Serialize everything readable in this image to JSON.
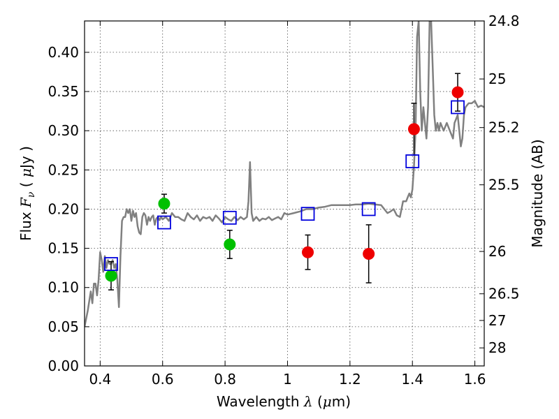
{
  "chart_data": {
    "type": "scatter",
    "xlabel": "Wavelength  λ (μm)",
    "ylabel": "Flux  F_ν  ( μJy )",
    "ylabel_right": "Magnitude (AB)",
    "xlim": [
      0.35,
      1.63
    ],
    "ylim": [
      0.0,
      0.44
    ],
    "x_ticks": [
      0.4,
      0.6,
      0.8,
      1.0,
      1.2,
      1.4,
      1.6
    ],
    "x_tick_labels": [
      "0.4",
      "0.6",
      "0.8",
      "1",
      "1.2",
      "1.4",
      "1.6"
    ],
    "y_ticks": [
      0.0,
      0.05,
      0.1,
      0.15,
      0.2,
      0.25,
      0.3,
      0.35,
      0.4
    ],
    "y_tick_labels": [
      "0.00",
      "0.05",
      "0.10",
      "0.15",
      "0.20",
      "0.25",
      "0.30",
      "0.35",
      "0.40"
    ],
    "right_ticks": [
      {
        "label": "24.8",
        "flux": 0.44
      },
      {
        "label": "25",
        "flux": 0.366
      },
      {
        "label": "25.2",
        "flux": 0.304
      },
      {
        "label": "25.5",
        "flux": 0.231
      },
      {
        "label": "26",
        "flux": 0.146
      },
      {
        "label": "26.5",
        "flux": 0.092
      },
      {
        "label": "27",
        "flux": 0.058
      },
      {
        "label": "28",
        "flux": 0.023
      }
    ],
    "grid": true,
    "colors": {
      "model": "#808080",
      "green": "#00c000",
      "red": "#ee0000",
      "square": "#0000dd",
      "errorbar": "#000000"
    },
    "series": [
      {
        "name": "green points",
        "marker": "circle",
        "color": "green",
        "points": [
          {
            "x": 0.435,
            "y": 0.115,
            "err": 0.018
          },
          {
            "x": 0.605,
            "y": 0.207,
            "err": 0.012
          },
          {
            "x": 0.815,
            "y": 0.155,
            "err": 0.018
          }
        ]
      },
      {
        "name": "red points",
        "marker": "circle",
        "color": "red",
        "points": [
          {
            "x": 1.065,
            "y": 0.145,
            "err": 0.022
          },
          {
            "x": 1.26,
            "y": 0.143,
            "err": 0.037
          },
          {
            "x": 1.405,
            "y": 0.302,
            "err": 0.033
          },
          {
            "x": 1.545,
            "y": 0.349,
            "err": 0.024
          }
        ]
      },
      {
        "name": "model squares",
        "marker": "square",
        "color": "square",
        "points": [
          {
            "x": 0.435,
            "y": 0.13
          },
          {
            "x": 0.605,
            "y": 0.183
          },
          {
            "x": 0.815,
            "y": 0.189
          },
          {
            "x": 1.065,
            "y": 0.194
          },
          {
            "x": 1.26,
            "y": 0.2
          },
          {
            "x": 1.4,
            "y": 0.261
          },
          {
            "x": 1.545,
            "y": 0.33
          }
        ]
      }
    ],
    "model_spectrum": [
      [
        0.35,
        0.05
      ],
      [
        0.36,
        0.07
      ],
      [
        0.37,
        0.095
      ],
      [
        0.375,
        0.08
      ],
      [
        0.38,
        0.105
      ],
      [
        0.385,
        0.105
      ],
      [
        0.39,
        0.09
      ],
      [
        0.395,
        0.11
      ],
      [
        0.4,
        0.145
      ],
      [
        0.405,
        0.135
      ],
      [
        0.41,
        0.12
      ],
      [
        0.415,
        0.14
      ],
      [
        0.42,
        0.125
      ],
      [
        0.425,
        0.135
      ],
      [
        0.43,
        0.13
      ],
      [
        0.435,
        0.13
      ],
      [
        0.44,
        0.135
      ],
      [
        0.445,
        0.125
      ],
      [
        0.45,
        0.13
      ],
      [
        0.455,
        0.11
      ],
      [
        0.46,
        0.075
      ],
      [
        0.465,
        0.14
      ],
      [
        0.47,
        0.185
      ],
      [
        0.475,
        0.19
      ],
      [
        0.48,
        0.19
      ],
      [
        0.485,
        0.2
      ],
      [
        0.49,
        0.195
      ],
      [
        0.495,
        0.2
      ],
      [
        0.5,
        0.185
      ],
      [
        0.505,
        0.198
      ],
      [
        0.51,
        0.19
      ],
      [
        0.515,
        0.195
      ],
      [
        0.52,
        0.178
      ],
      [
        0.525,
        0.17
      ],
      [
        0.53,
        0.168
      ],
      [
        0.535,
        0.19
      ],
      [
        0.54,
        0.195
      ],
      [
        0.545,
        0.192
      ],
      [
        0.55,
        0.18
      ],
      [
        0.555,
        0.19
      ],
      [
        0.56,
        0.185
      ],
      [
        0.565,
        0.19
      ],
      [
        0.57,
        0.192
      ],
      [
        0.575,
        0.18
      ],
      [
        0.58,
        0.188
      ],
      [
        0.585,
        0.19
      ],
      [
        0.59,
        0.186
      ],
      [
        0.595,
        0.19
      ],
      [
        0.6,
        0.187
      ],
      [
        0.61,
        0.19
      ],
      [
        0.62,
        0.185
      ],
      [
        0.63,
        0.195
      ],
      [
        0.64,
        0.19
      ],
      [
        0.65,
        0.19
      ],
      [
        0.66,
        0.187
      ],
      [
        0.67,
        0.185
      ],
      [
        0.68,
        0.195
      ],
      [
        0.69,
        0.19
      ],
      [
        0.7,
        0.187
      ],
      [
        0.71,
        0.192
      ],
      [
        0.72,
        0.185
      ],
      [
        0.73,
        0.19
      ],
      [
        0.74,
        0.188
      ],
      [
        0.75,
        0.19
      ],
      [
        0.76,
        0.185
      ],
      [
        0.77,
        0.192
      ],
      [
        0.78,
        0.188
      ],
      [
        0.79,
        0.183
      ],
      [
        0.8,
        0.19
      ],
      [
        0.81,
        0.187
      ],
      [
        0.82,
        0.185
      ],
      [
        0.83,
        0.19
      ],
      [
        0.84,
        0.186
      ],
      [
        0.85,
        0.19
      ],
      [
        0.86,
        0.187
      ],
      [
        0.87,
        0.19
      ],
      [
        0.875,
        0.21
      ],
      [
        0.88,
        0.26
      ],
      [
        0.885,
        0.195
      ],
      [
        0.89,
        0.185
      ],
      [
        0.9,
        0.19
      ],
      [
        0.91,
        0.185
      ],
      [
        0.92,
        0.188
      ],
      [
        0.93,
        0.187
      ],
      [
        0.94,
        0.19
      ],
      [
        0.95,
        0.186
      ],
      [
        0.96,
        0.188
      ],
      [
        0.97,
        0.19
      ],
      [
        0.98,
        0.187
      ],
      [
        0.99,
        0.195
      ],
      [
        1.0,
        0.193
      ],
      [
        1.02,
        0.195
      ],
      [
        1.04,
        0.197
      ],
      [
        1.06,
        0.2
      ],
      [
        1.08,
        0.2
      ],
      [
        1.1,
        0.202
      ],
      [
        1.12,
        0.203
      ],
      [
        1.14,
        0.205
      ],
      [
        1.16,
        0.205
      ],
      [
        1.18,
        0.205
      ],
      [
        1.2,
        0.205
      ],
      [
        1.22,
        0.206
      ],
      [
        1.24,
        0.206
      ],
      [
        1.26,
        0.207
      ],
      [
        1.28,
        0.206
      ],
      [
        1.3,
        0.205
      ],
      [
        1.32,
        0.195
      ],
      [
        1.33,
        0.197
      ],
      [
        1.34,
        0.2
      ],
      [
        1.35,
        0.192
      ],
      [
        1.36,
        0.19
      ],
      [
        1.365,
        0.2
      ],
      [
        1.37,
        0.21
      ],
      [
        1.375,
        0.21
      ],
      [
        1.38,
        0.21
      ],
      [
        1.385,
        0.215
      ],
      [
        1.39,
        0.22
      ],
      [
        1.395,
        0.215
      ],
      [
        1.4,
        0.225
      ],
      [
        1.405,
        0.255
      ],
      [
        1.41,
        0.3
      ],
      [
        1.415,
        0.42
      ],
      [
        1.42,
        0.44
      ],
      [
        1.425,
        0.35
      ],
      [
        1.43,
        0.3
      ],
      [
        1.435,
        0.33
      ],
      [
        1.44,
        0.31
      ],
      [
        1.445,
        0.29
      ],
      [
        1.45,
        0.33
      ],
      [
        1.455,
        0.44
      ],
      [
        1.46,
        0.44
      ],
      [
        1.465,
        0.38
      ],
      [
        1.47,
        0.32
      ],
      [
        1.475,
        0.3
      ],
      [
        1.48,
        0.31
      ],
      [
        1.485,
        0.3
      ],
      [
        1.49,
        0.31
      ],
      [
        1.5,
        0.3
      ],
      [
        1.51,
        0.31
      ],
      [
        1.52,
        0.3
      ],
      [
        1.53,
        0.29
      ],
      [
        1.535,
        0.31
      ],
      [
        1.54,
        0.315
      ],
      [
        1.545,
        0.32
      ],
      [
        1.55,
        0.3
      ],
      [
        1.555,
        0.28
      ],
      [
        1.56,
        0.29
      ],
      [
        1.565,
        0.32
      ],
      [
        1.57,
        0.33
      ],
      [
        1.58,
        0.335
      ],
      [
        1.59,
        0.335
      ],
      [
        1.6,
        0.338
      ],
      [
        1.61,
        0.33
      ],
      [
        1.62,
        0.332
      ],
      [
        1.63,
        0.33
      ]
    ]
  }
}
